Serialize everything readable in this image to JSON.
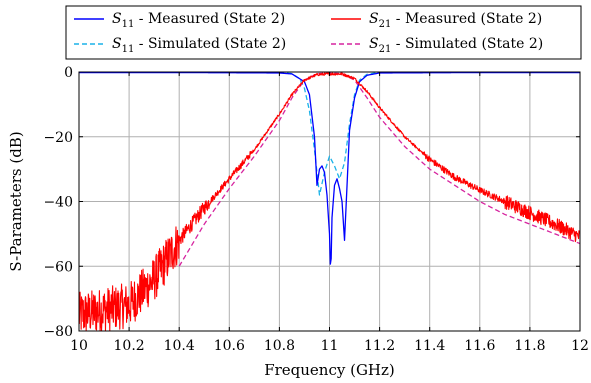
{
  "chart_data": {
    "type": "line",
    "xlabel": "Frequency (GHz)",
    "ylabel": "S-Parameters (dB)",
    "xlim": [
      10,
      12
    ],
    "ylim": [
      -80,
      0
    ],
    "xticks": [
      "10",
      "10.2",
      "10.4",
      "10.6",
      "10.8",
      "11",
      "11.2",
      "11.4",
      "11.6",
      "11.8",
      "12"
    ],
    "yticks": [
      "0",
      "−20",
      "−40",
      "−60",
      "−80"
    ],
    "grid": true,
    "legend_position": "top",
    "series": [
      {
        "name_main": "S",
        "name_sub": "11",
        "name_rest": " - Measured (State 2)",
        "color": "#0000ff",
        "dash": "solid",
        "noisy": false,
        "x": [
          10.0,
          10.5,
          10.8,
          10.85,
          10.9,
          10.92,
          10.94,
          10.95,
          10.96,
          10.97,
          10.98,
          10.99,
          11.0,
          11.005,
          11.01,
          11.02,
          11.03,
          11.04,
          11.05,
          11.06,
          11.08,
          11.1,
          11.12,
          11.15,
          11.2,
          11.5,
          12.0
        ],
        "y": [
          -0.2,
          -0.2,
          -0.3,
          -0.6,
          -3,
          -7,
          -20,
          -35,
          -30,
          -29,
          -31,
          -38,
          -50,
          -64,
          -45,
          -35,
          -33,
          -36,
          -40,
          -52,
          -18,
          -8,
          -3,
          -1,
          -0.3,
          -0.2,
          -0.2
        ]
      },
      {
        "name_main": "S",
        "name_sub": "21",
        "name_rest": " - Measured (State 2)",
        "color": "#ff0000",
        "dash": "solid",
        "noisy": true,
        "x": [
          10.0,
          10.2,
          10.3,
          10.4,
          10.5,
          10.6,
          10.7,
          10.8,
          10.85,
          10.9,
          10.95,
          11.0,
          11.05,
          11.1,
          11.15,
          11.2,
          11.3,
          11.4,
          11.5,
          11.6,
          11.7,
          11.8,
          11.9,
          12.0
        ],
        "y": [
          -75,
          -72,
          -64,
          -52,
          -42,
          -33,
          -24,
          -13,
          -7,
          -2.5,
          -0.8,
          -0.6,
          -0.6,
          -2,
          -6,
          -11,
          -20,
          -27,
          -32.5,
          -36.5,
          -40,
          -43.5,
          -47,
          -51
        ]
      },
      {
        "name_main": "S",
        "name_sub": "11",
        "name_rest": " - Simulated (State 2)",
        "color": "#1ab2e8",
        "dash": "dashed",
        "noisy": false,
        "x": [
          10.0,
          10.8,
          10.85,
          10.88,
          10.9,
          10.92,
          10.94,
          10.96,
          10.98,
          11.0,
          11.02,
          11.04,
          11.06,
          11.08,
          11.1,
          11.12,
          11.15,
          11.2,
          12.0
        ],
        "y": [
          0,
          -0.1,
          -0.5,
          -2,
          -5,
          -12,
          -24,
          -38,
          -31,
          -26,
          -29,
          -33,
          -28,
          -16,
          -7,
          -2.5,
          -0.7,
          -0.1,
          0
        ]
      },
      {
        "name_main": "S",
        "name_sub": "21",
        "name_rest": " - Simulated (State 2)",
        "color": "#d6249f",
        "dash": "dashed",
        "noisy": false,
        "x": [
          10.4,
          10.5,
          10.6,
          10.7,
          10.8,
          10.85,
          10.9,
          10.95,
          11.0,
          11.05,
          11.1,
          11.15,
          11.2,
          11.3,
          11.4,
          11.5,
          11.6,
          11.7,
          11.8,
          11.9,
          12.0
        ],
        "y": [
          -60,
          -47,
          -36,
          -26,
          -15,
          -8,
          -2.5,
          -0.5,
          -0.3,
          -0.5,
          -2.5,
          -8,
          -14,
          -23,
          -30,
          -35,
          -40,
          -44,
          -47,
          -50,
          -53
        ]
      }
    ]
  }
}
